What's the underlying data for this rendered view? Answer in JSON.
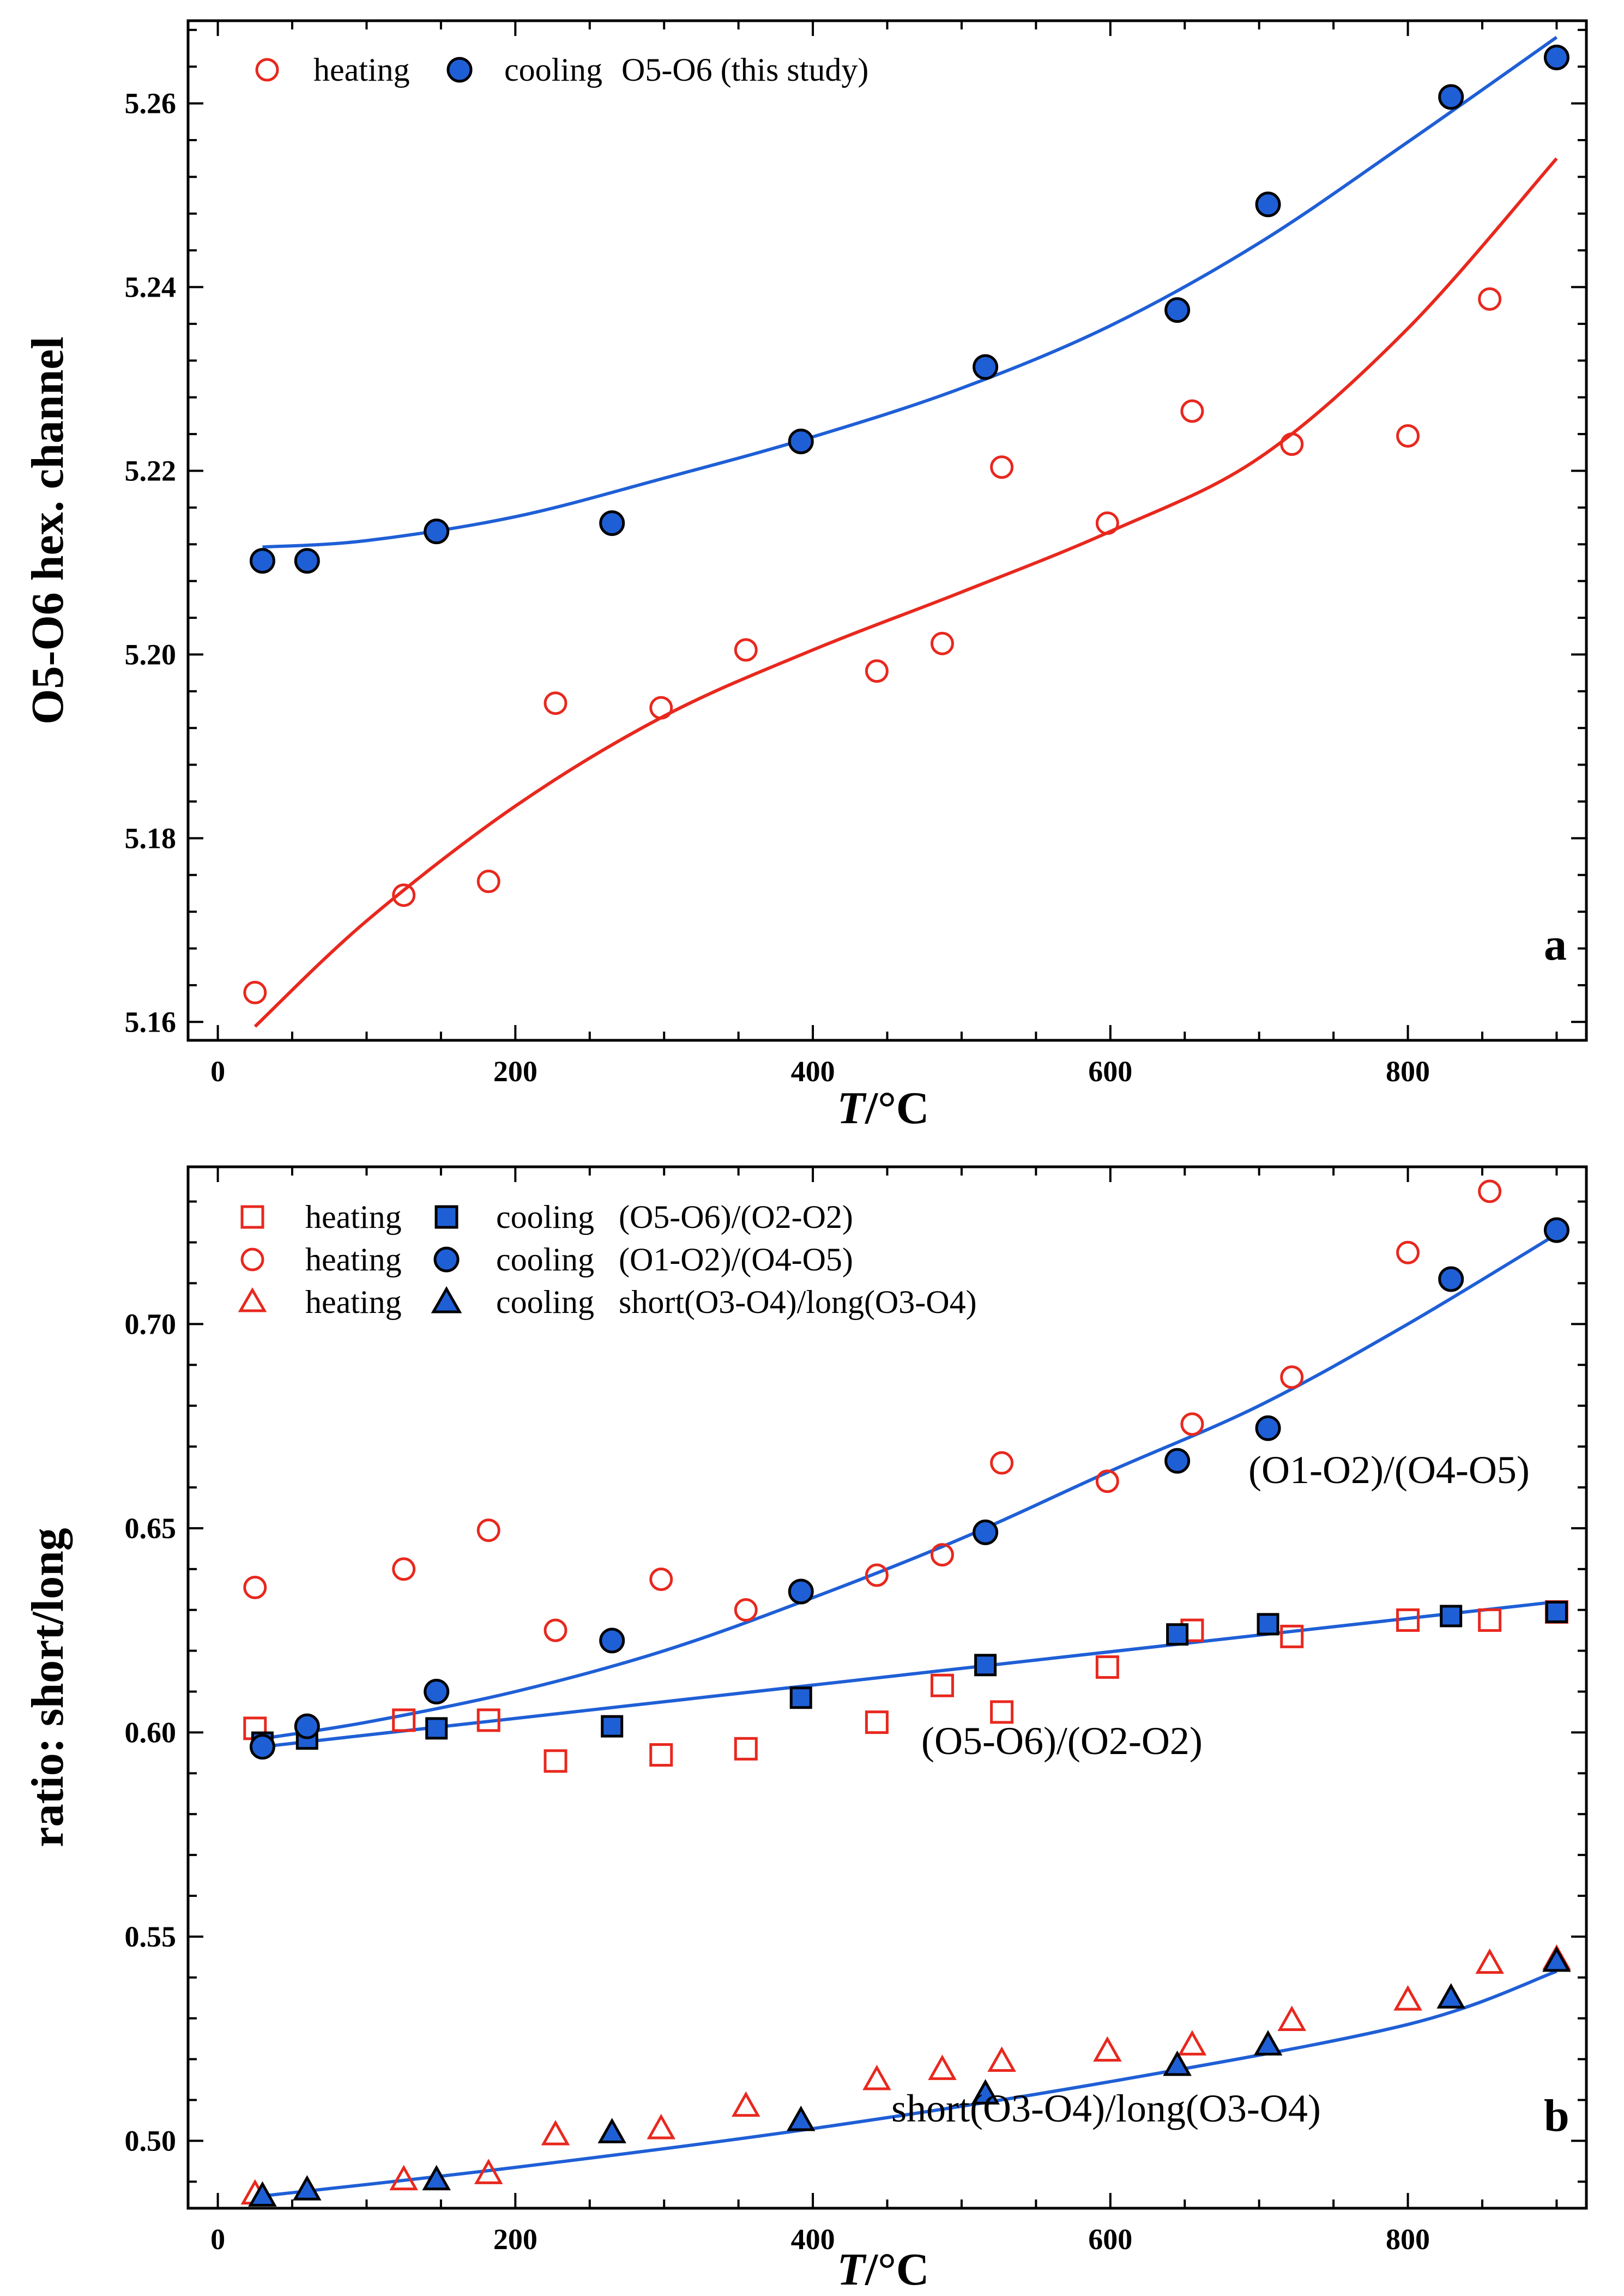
{
  "chart_data": [
    {
      "id": "a",
      "type": "scatter",
      "panel_label": "a",
      "xlabel_italic": "T",
      "xlabel_rest": "/°C",
      "ylabel": "O5-O6 hex. channel",
      "xlim": [
        -20,
        920
      ],
      "ylim": [
        5.158,
        5.269
      ],
      "xticks": [
        0,
        200,
        400,
        600,
        800
      ],
      "yticks": [
        5.16,
        5.18,
        5.2,
        5.22,
        5.24,
        5.26
      ],
      "ytick_format": 2,
      "legend": {
        "heating_label": "heating",
        "cooling_label": "cooling",
        "name": "O5-O6 (this study)"
      },
      "series": [
        {
          "name": "heating",
          "marker": "circle-open",
          "color": "#e8281e",
          "x": [
            25,
            125,
            182,
            227,
            298,
            355,
            443,
            487,
            527,
            598,
            655,
            722,
            800,
            855,
            900
          ],
          "y": [
            5.1632,
            5.1738,
            5.1753,
            5.1947,
            5.1942,
            5.2005,
            5.1982,
            5.2012,
            5.2204,
            5.2143,
            5.2265,
            5.2229,
            5.2238,
            5.2387,
            5.265
          ]
        },
        {
          "name": "cooling",
          "marker": "circle-filled",
          "color": "#1f5fd6",
          "x": [
            30,
            60,
            147,
            265,
            392,
            516,
            645,
            706,
            829,
            900
          ],
          "y": [
            5.2102,
            5.2102,
            5.2134,
            5.2143,
            5.2232,
            5.2313,
            5.2375,
            5.249,
            5.2607,
            5.265
          ]
        }
      ],
      "fits": [
        {
          "name": "heating fit",
          "color": "#e8281e",
          "x": [
            25,
            100,
            200,
            300,
            400,
            500,
            600,
            700,
            800,
            900
          ],
          "y": [
            5.1595,
            5.171,
            5.1835,
            5.1933,
            5.2005,
            5.2068,
            5.2134,
            5.2214,
            5.2355,
            5.254
          ]
        },
        {
          "name": "cooling fit",
          "color": "#1f5fd6",
          "x": [
            30,
            100,
            200,
            300,
            400,
            500,
            600,
            700,
            800,
            900
          ],
          "y": [
            5.2117,
            5.2124,
            5.215,
            5.2192,
            5.2237,
            5.229,
            5.2358,
            5.2448,
            5.2558,
            5.2672
          ]
        }
      ]
    },
    {
      "id": "b",
      "type": "scatter",
      "panel_label": "b",
      "xlabel_italic": "T",
      "xlabel_rest": "/°C",
      "ylabel": "ratio:  short/long",
      "xlim": [
        -20,
        920
      ],
      "ylim": [
        0.4835,
        0.7385
      ],
      "xticks": [
        0,
        200,
        400,
        600,
        800
      ],
      "yticks": [
        0.5,
        0.55,
        0.6,
        0.65,
        0.7
      ],
      "ytick_format": 2,
      "legend": [
        {
          "heating_label": "heating",
          "cooling_label": "cooling",
          "name": "(O5-O6)/(O2-O2)",
          "marker": "square"
        },
        {
          "heating_label": "heating",
          "cooling_label": "cooling",
          "name": "(O1-O2)/(O4-O5)",
          "marker": "circle"
        },
        {
          "heating_label": "heating",
          "cooling_label": "cooling",
          "name": "short(O3-O4)/long(O3-O4)",
          "marker": "triangle"
        }
      ],
      "annotations": {
        "o1o2": "(O1-O2)/(O4-O5)",
        "o5o6": "(O5-O6)/(O2-O2)",
        "o3o4": "short(O3-O4)/long(O3-O4)"
      },
      "series": [
        {
          "name": "heating (O5-O6)/(O2-O2)",
          "marker": "square-open",
          "color": "#e8281e",
          "x": [
            25,
            125,
            182,
            227,
            298,
            355,
            443,
            487,
            527,
            598,
            655,
            722,
            800,
            855,
            900
          ],
          "y": [
            0.601,
            0.603,
            0.603,
            0.593,
            0.5945,
            0.596,
            0.6025,
            0.6115,
            0.605,
            0.616,
            0.625,
            0.6235,
            0.6275,
            0.6275,
            0.6295
          ]
        },
        {
          "name": "cooling (O5-O6)/(O2-O2)",
          "marker": "square-filled",
          "color": "#1f5fd6",
          "x": [
            30,
            60,
            147,
            265,
            392,
            516,
            645,
            706,
            829,
            900
          ],
          "y": [
            0.5975,
            0.5985,
            0.601,
            0.6015,
            0.6085,
            0.6165,
            0.624,
            0.6265,
            0.6285,
            0.6295
          ]
        },
        {
          "name": "heating (O1-O2)/(O4-O5)",
          "marker": "circle-open",
          "color": "#e8281e",
          "x": [
            25,
            125,
            182,
            227,
            298,
            355,
            443,
            487,
            527,
            598,
            655,
            722,
            800,
            855,
            900
          ],
          "y": [
            0.6355,
            0.64,
            0.6495,
            0.625,
            0.6375,
            0.63,
            0.6385,
            0.6435,
            0.666,
            0.6615,
            0.6755,
            0.687,
            0.7175,
            0.7325,
            0.723
          ]
        },
        {
          "name": "cooling (O1-O2)/(O4-O5)",
          "marker": "circle-filled",
          "color": "#1f5fd6",
          "x": [
            30,
            60,
            147,
            265,
            392,
            516,
            645,
            706,
            829,
            900
          ],
          "y": [
            0.5965,
            0.6015,
            0.61,
            0.6225,
            0.6345,
            0.649,
            0.6665,
            0.6745,
            0.711,
            0.723
          ]
        },
        {
          "name": "heating short(O3-O4)/long(O3-O4)",
          "marker": "triangle-open",
          "color": "#e8281e",
          "x": [
            25,
            125,
            182,
            227,
            298,
            355,
            443,
            487,
            527,
            598,
            655,
            722,
            800,
            855,
            900
          ],
          "y": [
            0.487,
            0.4905,
            0.492,
            0.5015,
            0.503,
            0.5085,
            0.515,
            0.5175,
            0.5195,
            0.522,
            0.5235,
            0.5295,
            0.5345,
            0.5435,
            0.5445
          ]
        },
        {
          "name": "cooling short(O3-O4)/long(O3-O4)",
          "marker": "triangle-filled",
          "color": "#1f5fd6",
          "x": [
            30,
            60,
            147,
            265,
            392,
            516,
            645,
            706,
            829,
            900
          ],
          "y": [
            0.4865,
            0.488,
            0.4905,
            0.502,
            0.505,
            0.5115,
            0.5185,
            0.5235,
            0.535,
            0.544
          ]
        }
      ],
      "fits": [
        {
          "name": "(O1-O2)/(O4-O5) fit",
          "color": "#1f5fd6",
          "x": [
            30,
            100,
            200,
            300,
            400,
            500,
            600,
            700,
            800,
            900
          ],
          "y": [
            0.5985,
            0.6025,
            0.61,
            0.62,
            0.633,
            0.6475,
            0.664,
            0.68,
            0.7,
            0.722
          ]
        },
        {
          "name": "(O5-O6)/(O2-O2) fit",
          "color": "#1f5fd6",
          "x": [
            30,
            900
          ],
          "y": [
            0.5965,
            0.632
          ]
        },
        {
          "name": "short(O3-O4)/long(O3-O4) fit",
          "color": "#1f5fd6",
          "x": [
            30,
            200,
            400,
            600,
            800,
            900
          ],
          "y": [
            0.4865,
            0.4935,
            0.503,
            0.5145,
            0.5285,
            0.5415
          ]
        }
      ]
    }
  ]
}
